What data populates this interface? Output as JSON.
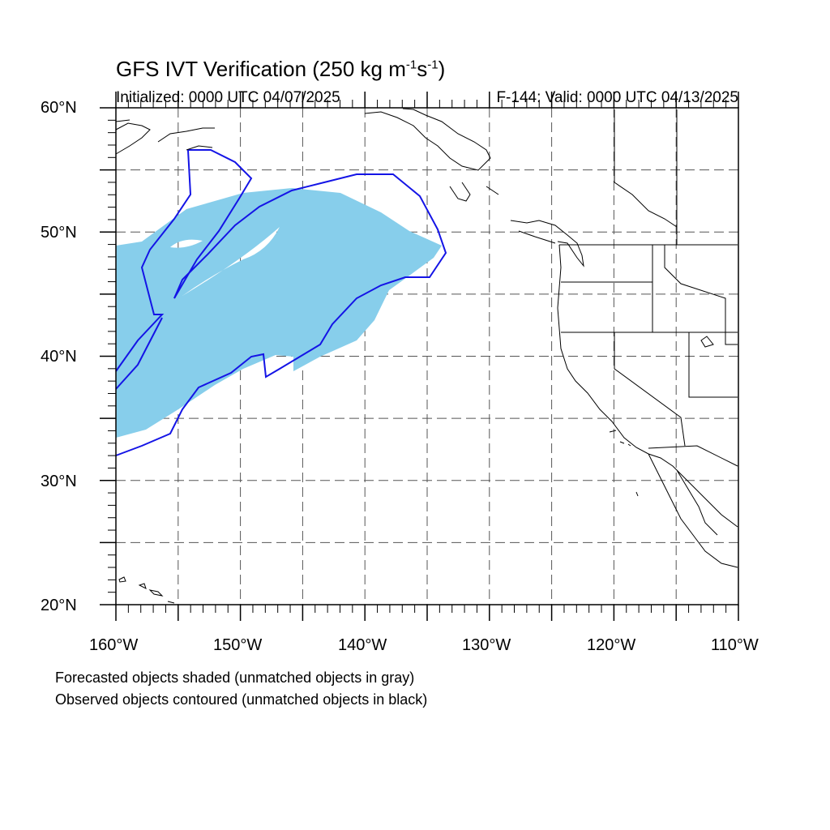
{
  "title": {
    "main": "GFS IVT Verification (250 kg m",
    "exp1": "-1",
    "mid": "s",
    "exp2": "-1",
    "end": ")"
  },
  "initialized": "Initialized: 0000 UTC 04/07/2025",
  "valid": "F-144: Valid: 0000 UTC 04/13/2025",
  "lat_labels": [
    "60°N",
    "50°N",
    "40°N",
    "30°N",
    "20°N"
  ],
  "lon_labels": [
    "160°W",
    "150°W",
    "140°W",
    "130°W",
    "120°W",
    "110°W"
  ],
  "legend": {
    "line1": "Forecasted objects shaded (unmatched objects in gray)",
    "line2": "Observed objects contoured (unmatched objects in black)"
  },
  "colors": {
    "forecast_fill": "#87ceeb",
    "observed_contour": "#1414e6",
    "coastline": "#000000",
    "grid": "#555555"
  },
  "map_extent": {
    "lon_min": -160,
    "lon_max": -110,
    "lat_min": 20,
    "lat_max": 60,
    "grid_interval_deg": 5
  }
}
